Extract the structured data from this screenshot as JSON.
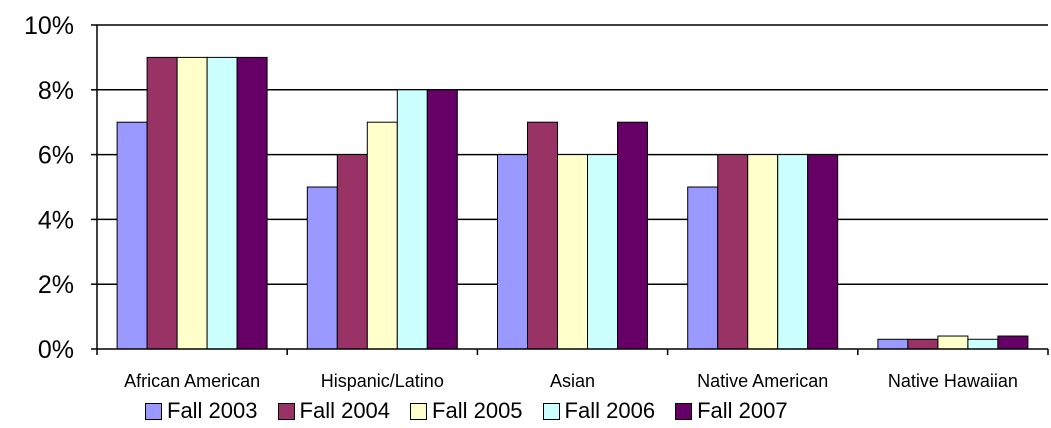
{
  "chart_data": {
    "type": "bar",
    "categories": [
      "African American",
      "Hispanic/Latino",
      "Asian",
      "Native American",
      "Native Hawaiian"
    ],
    "series": [
      {
        "name": "Fall 2003",
        "color": "#9999FF",
        "values": [
          7,
          5,
          6,
          5,
          0.3
        ]
      },
      {
        "name": "Fall 2004",
        "color": "#993366",
        "values": [
          9,
          6,
          7,
          6,
          0.3
        ]
      },
      {
        "name": "Fall 2005",
        "color": "#FFFFCC",
        "values": [
          9,
          7,
          6,
          6,
          0.4
        ]
      },
      {
        "name": "Fall 2006",
        "color": "#CCFFFF",
        "values": [
          9,
          8,
          6,
          6,
          0.3
        ]
      },
      {
        "name": "Fall 2007",
        "color": "#660066",
        "values": [
          9,
          8,
          7,
          6,
          0.4
        ]
      }
    ],
    "ylim": [
      0,
      10
    ],
    "yticks": [
      0,
      2,
      4,
      6,
      8,
      10
    ],
    "ytick_labels": [
      "0%",
      "2%",
      "4%",
      "6%",
      "8%",
      "10%"
    ],
    "grid": true,
    "legend_position": "bottom"
  }
}
